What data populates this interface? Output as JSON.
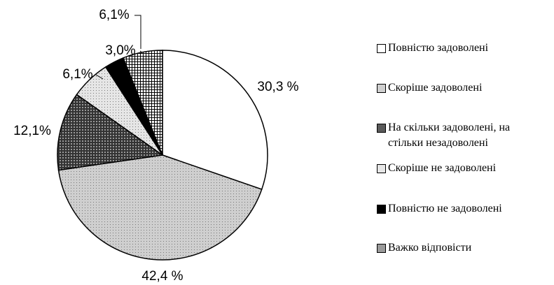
{
  "chart_data": {
    "type": "pie",
    "categories": [
      "Повністю задоволені",
      "Скоріше задоволені",
      "На скільки задоволені, на стільки незадоволені",
      "Скоріше не задоволені",
      "Повністю не задоволені",
      "Важко відповісти"
    ],
    "values": [
      30.3,
      42.4,
      12.1,
      6.1,
      3.0,
      6.1
    ],
    "value_labels": [
      "30,3 %",
      "42,4 %",
      "12,1%",
      "6,1%",
      "3,0%",
      "6,1%"
    ],
    "colors": [
      "#ffffff",
      "#cfcfcf",
      "#5a5a5a",
      "#e6e6e6",
      "#000000",
      "#9a9a9a"
    ],
    "legend": "right"
  }
}
